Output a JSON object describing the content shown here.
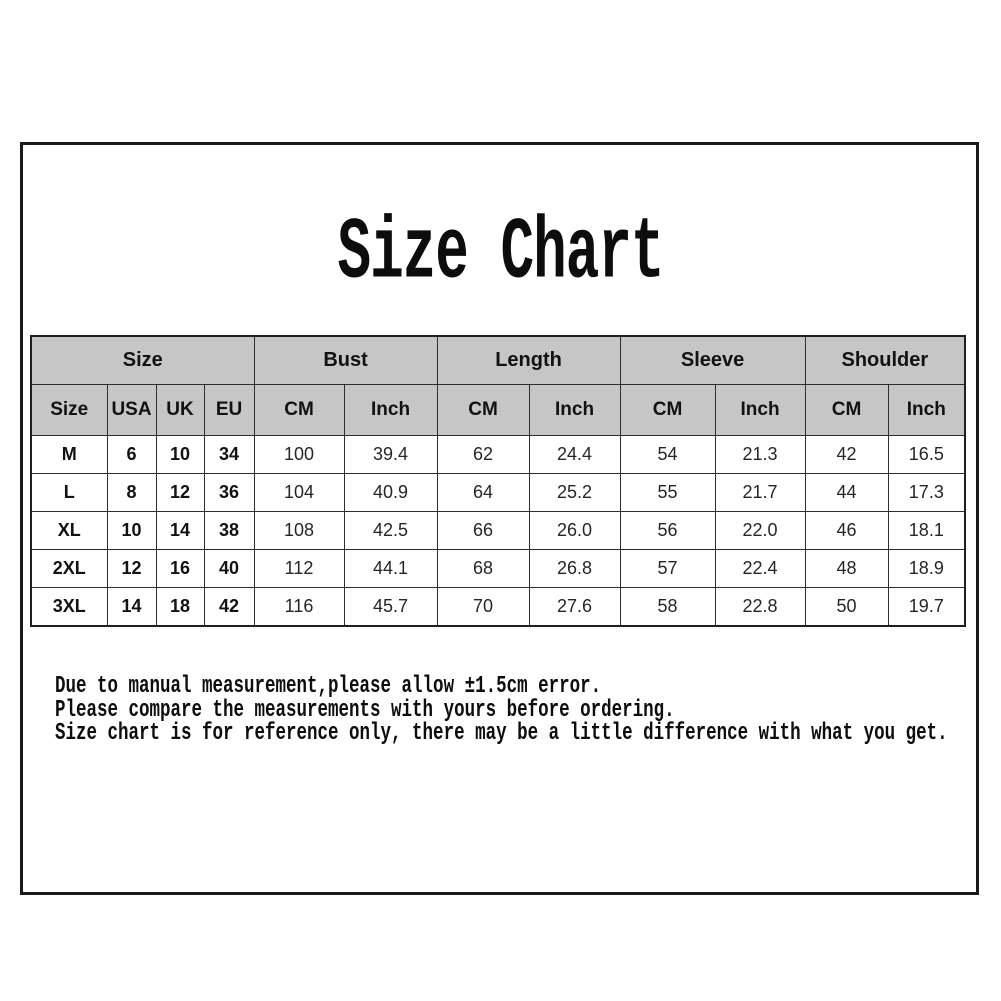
{
  "chart_data": {
    "type": "table",
    "title": "Size Chart",
    "column_groups": [
      {
        "label": "Size",
        "span": 4
      },
      {
        "label": "Bust",
        "span": 2
      },
      {
        "label": "Length",
        "span": 2
      },
      {
        "label": "Sleeve",
        "span": 2
      },
      {
        "label": "Shoulder",
        "span": 2
      }
    ],
    "columns": [
      "Size",
      "USA",
      "UK",
      "EU",
      "CM",
      "Inch",
      "CM",
      "Inch",
      "CM",
      "Inch",
      "CM",
      "Inch"
    ],
    "rows": [
      [
        "M",
        "6",
        "10",
        "34",
        "100",
        "39.4",
        "62",
        "24.4",
        "54",
        "21.3",
        "42",
        "16.5"
      ],
      [
        "L",
        "8",
        "12",
        "36",
        "104",
        "40.9",
        "64",
        "25.2",
        "55",
        "21.7",
        "44",
        "17.3"
      ],
      [
        "XL",
        "10",
        "14",
        "38",
        "108",
        "42.5",
        "66",
        "26.0",
        "56",
        "22.0",
        "46",
        "18.1"
      ],
      [
        "2XL",
        "12",
        "16",
        "40",
        "112",
        "44.1",
        "68",
        "26.8",
        "57",
        "22.4",
        "48",
        "18.9"
      ],
      [
        "3XL",
        "14",
        "18",
        "42",
        "116",
        "45.7",
        "70",
        "27.6",
        "58",
        "22.8",
        "50",
        "19.7"
      ]
    ]
  },
  "notes": [
    "Due to manual measurement,please allow ±1.5cm error.",
    "Please compare the measurements with yours before ordering.",
    "Size chart is for reference only, there may be a little difference with what you get."
  ],
  "colors": {
    "header_bg": "#c6c6c6",
    "table_border": "#2e2e2e",
    "frame_border": "#1a1a1a",
    "text": "#0d0d0d"
  }
}
